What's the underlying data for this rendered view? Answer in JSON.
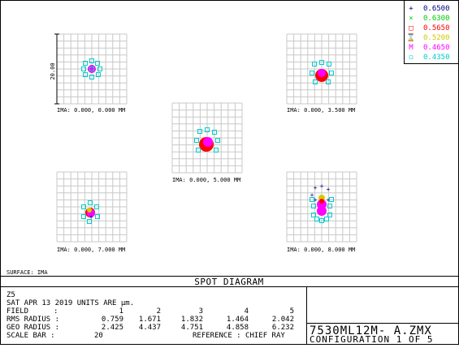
{
  "chart_data": {
    "type": "scatter",
    "title": "SPOT DIAGRAM",
    "scale_bar_label": "20.00",
    "surface": "SURFACE: IMA",
    "legend": [
      {
        "marker": "+",
        "label": "0.6500",
        "color": "#000080"
      },
      {
        "marker": "×",
        "label": "0.6300",
        "color": "#00cc00"
      },
      {
        "marker": "□",
        "label": "0.5650",
        "color": "#ff0000"
      },
      {
        "marker": "⌛",
        "label": "0.5200",
        "color": "#cccc00"
      },
      {
        "marker": "M",
        "label": "0.4650",
        "color": "#ff00ff"
      },
      {
        "marker": "◻",
        "label": "0.4350",
        "color": "#00cccc"
      }
    ],
    "fields": [
      {
        "label": "IMA: 0.000, 0.000 MM"
      },
      {
        "label": "IMA: 0.000, 3.500 MM"
      },
      {
        "label": "IMA: 0.000, 5.000 MM"
      },
      {
        "label": "IMA: 0.000, 7.000 MM"
      },
      {
        "label": "IMA: 0.000, 8.000 MM"
      }
    ]
  },
  "info": {
    "surface_num": "Z5",
    "date_line": "SAT APR 13 2019  UNITS ARE µm.",
    "field_label": "FIELD",
    "rms_label": "RMS RADIUS :",
    "geo_label": "GEO RADIUS :",
    "scale_label": "SCALE BAR  :",
    "colon": ":",
    "field_values": [
      "1",
      "2",
      "3",
      "4",
      "5"
    ],
    "rms_values": [
      "0.759",
      "1.671",
      "1.832",
      "1.464",
      "2.042"
    ],
    "geo_values": [
      "2.425",
      "4.437",
      "4.751",
      "4.858",
      "6.232"
    ],
    "scale_value": "20",
    "reference": "REFERENCE  : CHIEF RAY"
  },
  "file": {
    "name": "7530ML12M- A.ZMX",
    "config": "CONFIGURATION  1 OF 5"
  }
}
